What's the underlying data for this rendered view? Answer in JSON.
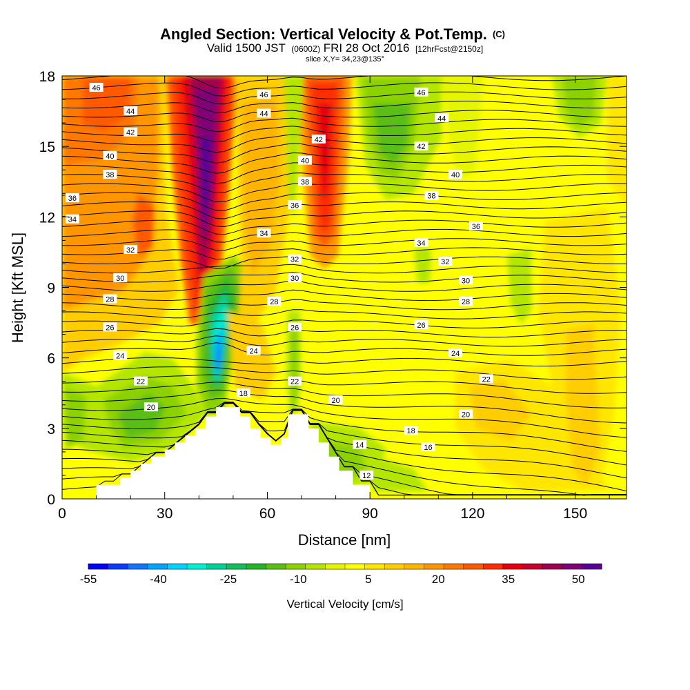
{
  "chart_data": {
    "type": "contour",
    "title": "Angled Section: Vertical Velocity & Pot.Temp.",
    "title_unit_tag": "(C)",
    "subtitle": {
      "valid": "Valid 1500 JST",
      "utc": "(0600Z)",
      "date": "FRI 28 Oct 2016",
      "forecast": "[12hrFcst@2150z]"
    },
    "slice_info": "slice X,Y= 34,23@135°",
    "xlabel": "Distance [nm]",
    "ylabel": "Height [Kft MSL]",
    "xlim": [
      0,
      165
    ],
    "ylim": [
      0,
      18
    ],
    "x_ticks": [
      "0",
      "30",
      "60",
      "90",
      "120",
      "150"
    ],
    "x_tick_values": [
      0,
      30,
      60,
      90,
      120,
      150
    ],
    "y_ticks": [
      "0",
      "3",
      "6",
      "9",
      "12",
      "15",
      "18"
    ],
    "y_tick_values": [
      0,
      3,
      6,
      9,
      12,
      15,
      18
    ],
    "colorbar": {
      "label": "Vertical Velocity [cm/s]",
      "tick_labels": [
        "-55",
        "-40",
        "-25",
        "-10",
        "5",
        "20",
        "35",
        "50"
      ],
      "tick_values": [
        -55,
        -40,
        -25,
        -10,
        5,
        20,
        35,
        50
      ],
      "min": -55,
      "max": 55,
      "step": 5,
      "colors": [
        "#0000ff",
        "#0a3cff",
        "#1473ff",
        "#00a5ff",
        "#00d2ff",
        "#00f0d2",
        "#00d296",
        "#14be5a",
        "#28b428",
        "#5abe14",
        "#8cd200",
        "#b4e600",
        "#e6f500",
        "#ffff00",
        "#ffe600",
        "#ffcd00",
        "#ffb400",
        "#ff9600",
        "#ff7800",
        "#ff5a00",
        "#ff2d00",
        "#e6000f",
        "#c8002d",
        "#a00050",
        "#800078",
        "#5a0096"
      ]
    },
    "terrain_profile": [
      [
        0,
        0
      ],
      [
        10,
        0
      ],
      [
        10,
        0.6
      ],
      [
        17,
        0.6
      ],
      [
        17,
        0.9
      ],
      [
        20,
        0.9
      ],
      [
        20,
        1.2
      ],
      [
        23,
        1.2
      ],
      [
        23,
        1.5
      ],
      [
        26,
        1.5
      ],
      [
        26,
        1.8
      ],
      [
        30,
        1.8
      ],
      [
        30,
        2.1
      ],
      [
        33,
        2.1
      ],
      [
        33,
        2.4
      ],
      [
        36,
        2.4
      ],
      [
        36,
        2.7
      ],
      [
        39,
        2.7
      ],
      [
        39,
        3.0
      ],
      [
        42,
        3.0
      ],
      [
        42,
        3.5
      ],
      [
        45,
        3.5
      ],
      [
        45,
        3.9
      ],
      [
        52,
        3.9
      ],
      [
        52,
        3.5
      ],
      [
        55,
        3.5
      ],
      [
        55,
        3.0
      ],
      [
        58,
        3.0
      ],
      [
        58,
        2.6
      ],
      [
        61,
        2.6
      ],
      [
        61,
        2.3
      ],
      [
        64,
        2.3
      ],
      [
        64,
        2.6
      ],
      [
        66,
        2.6
      ],
      [
        66,
        3.6
      ],
      [
        72,
        3.6
      ],
      [
        72,
        3.0
      ],
      [
        75,
        3.0
      ],
      [
        75,
        2.4
      ],
      [
        78,
        2.4
      ],
      [
        78,
        1.8
      ],
      [
        81,
        1.8
      ],
      [
        81,
        1.2
      ],
      [
        85,
        1.2
      ],
      [
        85,
        0.6
      ],
      [
        90,
        0.6
      ],
      [
        90,
        0
      ],
      [
        165,
        0
      ]
    ],
    "theta_contour_labels": [
      {
        "text": "46",
        "x": 10,
        "y": 17.5
      },
      {
        "text": "44",
        "x": 20,
        "y": 16.5
      },
      {
        "text": "42",
        "x": 20,
        "y": 15.6
      },
      {
        "text": "40",
        "x": 14,
        "y": 14.6
      },
      {
        "text": "38",
        "x": 14,
        "y": 13.8
      },
      {
        "text": "36",
        "x": 3,
        "y": 12.8
      },
      {
        "text": "34",
        "x": 3,
        "y": 11.9
      },
      {
        "text": "32",
        "x": 20,
        "y": 10.6
      },
      {
        "text": "30",
        "x": 17,
        "y": 9.4
      },
      {
        "text": "28",
        "x": 14,
        "y": 8.5
      },
      {
        "text": "26",
        "x": 14,
        "y": 7.3
      },
      {
        "text": "24",
        "x": 17,
        "y": 6.1
      },
      {
        "text": "22",
        "x": 23,
        "y": 5.0
      },
      {
        "text": "20",
        "x": 26,
        "y": 3.9
      },
      {
        "text": "46",
        "x": 59,
        "y": 17.2
      },
      {
        "text": "44",
        "x": 59,
        "y": 16.4
      },
      {
        "text": "42",
        "x": 75,
        "y": 15.3
      },
      {
        "text": "40",
        "x": 71,
        "y": 14.4
      },
      {
        "text": "38",
        "x": 71,
        "y": 13.5
      },
      {
        "text": "36",
        "x": 68,
        "y": 12.5
      },
      {
        "text": "34",
        "x": 59,
        "y": 11.3
      },
      {
        "text": "32",
        "x": 68,
        "y": 10.2
      },
      {
        "text": "30",
        "x": 68,
        "y": 9.4
      },
      {
        "text": "28",
        "x": 62,
        "y": 8.4
      },
      {
        "text": "26",
        "x": 68,
        "y": 7.3
      },
      {
        "text": "24",
        "x": 56,
        "y": 6.3
      },
      {
        "text": "22",
        "x": 68,
        "y": 5.0
      },
      {
        "text": "18",
        "x": 53,
        "y": 4.5
      },
      {
        "text": "20",
        "x": 80,
        "y": 4.2
      },
      {
        "text": "14",
        "x": 87,
        "y": 2.3
      },
      {
        "text": "12",
        "x": 89,
        "y": 1.0
      },
      {
        "text": "18",
        "x": 102,
        "y": 2.9
      },
      {
        "text": "16",
        "x": 107,
        "y": 2.2
      },
      {
        "text": "46",
        "x": 105,
        "y": 17.3
      },
      {
        "text": "44",
        "x": 111,
        "y": 16.2
      },
      {
        "text": "42",
        "x": 105,
        "y": 15.0
      },
      {
        "text": "40",
        "x": 115,
        "y": 13.8
      },
      {
        "text": "38",
        "x": 108,
        "y": 12.9
      },
      {
        "text": "36",
        "x": 121,
        "y": 11.6
      },
      {
        "text": "34",
        "x": 105,
        "y": 10.9
      },
      {
        "text": "32",
        "x": 112,
        "y": 10.1
      },
      {
        "text": "30",
        "x": 118,
        "y": 9.3
      },
      {
        "text": "28",
        "x": 118,
        "y": 8.4
      },
      {
        "text": "26",
        "x": 105,
        "y": 7.4
      },
      {
        "text": "24",
        "x": 115,
        "y": 6.2
      },
      {
        "text": "22",
        "x": 124,
        "y": 5.1
      },
      {
        "text": "20",
        "x": 118,
        "y": 3.6
      }
    ]
  }
}
